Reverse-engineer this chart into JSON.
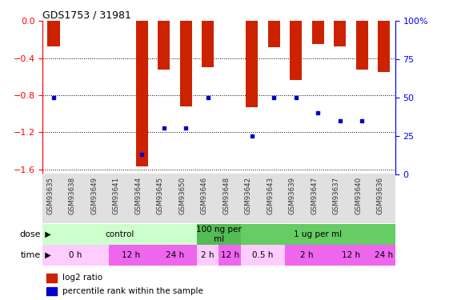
{
  "title": "GDS1753 / 31981",
  "samples": [
    "GSM93635",
    "GSM93638",
    "GSM93649",
    "GSM93641",
    "GSM93644",
    "GSM93645",
    "GSM93650",
    "GSM93646",
    "GSM93648",
    "GSM93642",
    "GSM93643",
    "GSM93639",
    "GSM93647",
    "GSM93637",
    "GSM93640",
    "GSM93636"
  ],
  "log2_ratio": [
    -0.27,
    0,
    0,
    0,
    -1.57,
    -0.52,
    -0.92,
    -0.5,
    0,
    -0.93,
    -0.28,
    -0.64,
    -0.25,
    -0.27,
    -0.52,
    -0.55
  ],
  "percentile_rank": [
    50,
    -1,
    -1,
    -1,
    13,
    30,
    30,
    50,
    -1,
    25,
    50,
    50,
    40,
    35,
    35,
    -1
  ],
  "bar_color": "#cc2200",
  "dot_color": "#0000cc",
  "ylim_left": [
    -1.65,
    0.0
  ],
  "ylim_right": [
    0,
    100
  ],
  "y_ticks_left": [
    0,
    -0.4,
    -0.8,
    -1.2,
    -1.6
  ],
  "y_ticks_right": [
    100,
    75,
    50,
    25,
    0
  ],
  "dose_groups": [
    {
      "label": "control",
      "start": 0,
      "end": 7,
      "color": "#ccffcc"
    },
    {
      "label": "100 ng per\nml",
      "start": 7,
      "end": 9,
      "color": "#55bb55"
    },
    {
      "label": "1 ug per ml",
      "start": 9,
      "end": 16,
      "color": "#66cc66"
    }
  ],
  "time_groups": [
    {
      "label": "0 h",
      "start": 0,
      "end": 3,
      "color": "#ffccff"
    },
    {
      "label": "12 h",
      "start": 3,
      "end": 5,
      "color": "#ee66ee"
    },
    {
      "label": "24 h",
      "start": 5,
      "end": 7,
      "color": "#ee66ee"
    },
    {
      "label": "2 h",
      "start": 7,
      "end": 8,
      "color": "#ffccff"
    },
    {
      "label": "12 h",
      "start": 8,
      "end": 9,
      "color": "#ee66ee"
    },
    {
      "label": "0.5 h",
      "start": 9,
      "end": 11,
      "color": "#ffccff"
    },
    {
      "label": "2 h",
      "start": 11,
      "end": 13,
      "color": "#ee66ee"
    },
    {
      "label": "12 h",
      "start": 13,
      "end": 15,
      "color": "#ee66ee"
    },
    {
      "label": "24 h",
      "start": 15,
      "end": 16,
      "color": "#ee66ee"
    }
  ],
  "legend_items": [
    {
      "color": "#cc2200",
      "label": "log2 ratio"
    },
    {
      "color": "#0000cc",
      "label": "percentile rank within the sample"
    }
  ]
}
